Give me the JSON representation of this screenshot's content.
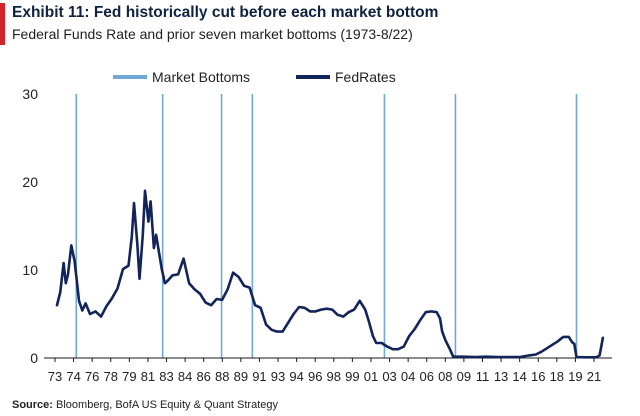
{
  "header": {
    "title": "Exhibit 11: Fed historically cut before each market bottom",
    "subtitle": "Federal Funds Rate and prior seven market bottoms (1973-8/22)"
  },
  "footer": {
    "source_label": "Source:",
    "source_text": "Bloomberg, BofA US Equity & Quant Strategy"
  },
  "colors": {
    "accent": "#d2232a",
    "fedrates_line": "#13245a",
    "market_bottoms": "#6fa9d8",
    "axis": "#1a1a1a",
    "title": "#0f2240"
  },
  "chart_data": {
    "type": "line",
    "title": "Exhibit 11: Fed historically cut before each market bottom",
    "subtitle": "Federal Funds Rate and prior seven market bottoms (1973-8/22)",
    "xlabel": "",
    "ylabel": "",
    "ylim": [
      0,
      30
    ],
    "xlim": [
      1973,
      2022.7
    ],
    "yticks": [
      0,
      10,
      20,
      30
    ],
    "xtick_labels": [
      "73",
      "74",
      "76",
      "78",
      "79",
      "81",
      "83",
      "84",
      "86",
      "88",
      "89",
      "91",
      "93",
      "94",
      "96",
      "98",
      "99",
      "01",
      "03",
      "04",
      "06",
      "08",
      "09",
      "11",
      "13",
      "14",
      "16",
      "18",
      "19",
      "21"
    ],
    "grid": false,
    "legend": {
      "position": "top",
      "entries": [
        "Market Bottoms",
        "FedRates"
      ]
    },
    "series": [
      {
        "name": "FedRates",
        "type": "line",
        "x": [
          1973.0,
          1973.3,
          1973.6,
          1973.8,
          1974.0,
          1974.3,
          1974.6,
          1974.8,
          1975.0,
          1975.3,
          1975.6,
          1976.0,
          1976.5,
          1977.0,
          1977.5,
          1978.0,
          1978.5,
          1979.0,
          1979.5,
          1979.8,
          1980.0,
          1980.3,
          1980.5,
          1980.8,
          1981.0,
          1981.3,
          1981.5,
          1981.8,
          1982.0,
          1982.5,
          1982.8,
          1983.0,
          1983.5,
          1984.0,
          1984.5,
          1985.0,
          1985.5,
          1986.0,
          1986.5,
          1987.0,
          1987.5,
          1988.0,
          1988.5,
          1989.0,
          1989.5,
          1990.0,
          1990.5,
          1991.0,
          1991.5,
          1992.0,
          1992.5,
          1993.0,
          1993.5,
          1994.0,
          1994.5,
          1995.0,
          1995.5,
          1996.0,
          1996.5,
          1997.0,
          1997.5,
          1998.0,
          1998.5,
          1998.8,
          1999.0,
          1999.5,
          2000.0,
          2000.5,
          2001.0,
          2001.3,
          2001.7,
          2002.0,
          2002.5,
          2003.0,
          2003.5,
          2004.0,
          2004.5,
          2005.0,
          2005.5,
          2006.0,
          2006.5,
          2007.0,
          2007.5,
          2007.8,
          2008.0,
          2008.3,
          2008.7,
          2009.0,
          2010.0,
          2011.0,
          2012.0,
          2013.0,
          2014.0,
          2015.0,
          2015.9,
          2016.5,
          2017.0,
          2017.5,
          2018.0,
          2018.5,
          2019.0,
          2019.5,
          2019.8,
          2020.0,
          2020.2,
          2021.0,
          2022.0,
          2022.3,
          2022.6
        ],
        "y": [
          6.0,
          7.5,
          10.8,
          8.5,
          9.5,
          12.8,
          11.0,
          8.8,
          6.5,
          5.4,
          6.2,
          5.0,
          5.3,
          4.7,
          5.9,
          6.8,
          7.9,
          10.1,
          10.5,
          13.8,
          17.6,
          13.0,
          9.0,
          14.0,
          19.0,
          15.5,
          17.8,
          12.5,
          14.0,
          10.2,
          8.5,
          8.7,
          9.4,
          9.5,
          11.3,
          8.5,
          7.8,
          7.3,
          6.3,
          6.0,
          6.7,
          6.6,
          7.8,
          9.7,
          9.2,
          8.2,
          8.0,
          6.0,
          5.7,
          3.8,
          3.2,
          3.0,
          3.0,
          4.0,
          5.0,
          5.8,
          5.7,
          5.3,
          5.3,
          5.5,
          5.6,
          5.5,
          4.9,
          4.8,
          4.7,
          5.2,
          5.5,
          6.5,
          5.5,
          4.3,
          2.5,
          1.7,
          1.7,
          1.3,
          1.0,
          1.0,
          1.3,
          2.5,
          3.3,
          4.3,
          5.2,
          5.3,
          5.2,
          4.5,
          3.0,
          2.0,
          1.0,
          0.15,
          0.15,
          0.1,
          0.15,
          0.1,
          0.1,
          0.1,
          0.3,
          0.4,
          0.7,
          1.1,
          1.5,
          1.9,
          2.4,
          2.4,
          1.8,
          1.6,
          0.1,
          0.08,
          0.08,
          0.3,
          2.3
        ]
      }
    ],
    "market_bottoms": [
      1974.75,
      1982.6,
      1987.95,
      1990.75,
      2002.75,
      2009.2,
      2020.2
    ]
  }
}
